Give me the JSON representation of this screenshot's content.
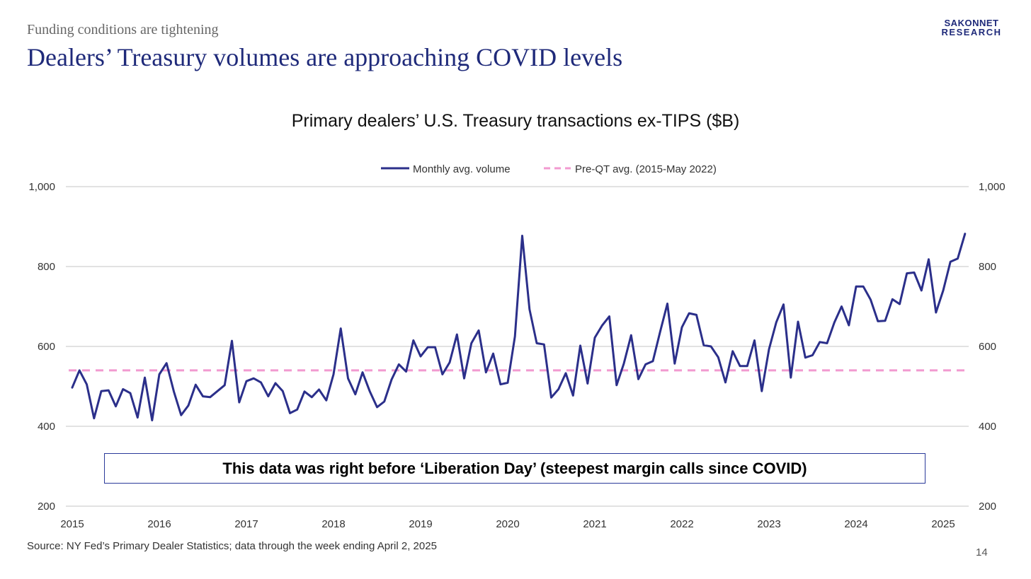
{
  "slide": {
    "kicker": "Funding conditions are tightening",
    "headline": "Dealers’ Treasury volumes are approaching COVID levels",
    "brand_line1": "SAKONNET",
    "brand_line2": "RESEARCH",
    "source": "Source: NY Fed’s Primary Dealer Statistics; data through the week ending April 2, 2025",
    "page_number": "14",
    "callout": "This data was right before ‘Liberation Day’ (steepest margin calls since COVID)"
  },
  "colors": {
    "title": "#1f2a7a",
    "series_line": "#2b2f8a",
    "reference_line": "#f29ad0",
    "grid": "#d0d0d0"
  },
  "chart_data": {
    "type": "line",
    "title": "Primary dealers’ U.S. Treasury transactions ex-TIPS ($B)",
    "ylim": [
      200,
      1000
    ],
    "yticks": [
      200,
      400,
      600,
      800,
      1000
    ],
    "ytick_labels": [
      "200",
      "400",
      "600",
      "800",
      "1,000"
    ],
    "xlim": [
      2015,
      2025.5
    ],
    "xticks": [
      2015,
      2016,
      2017,
      2018,
      2019,
      2020,
      2021,
      2022,
      2023,
      2024,
      2025
    ],
    "xtick_labels": [
      "2015",
      "2016",
      "2017",
      "2018",
      "2019",
      "2020",
      "2021",
      "2022",
      "2023",
      "2024",
      "2025"
    ],
    "grid": "horizontal",
    "legend": "top-center",
    "series": [
      {
        "name": "Monthly avg. volume",
        "style": "solid",
        "start": "2015-01",
        "frequency": "monthly",
        "values": [
          497,
          540,
          505,
          420,
          488,
          490,
          450,
          493,
          483,
          422,
          522,
          415,
          530,
          558,
          487,
          428,
          452,
          504,
          475,
          473,
          488,
          503,
          614,
          460,
          513,
          520,
          510,
          475,
          508,
          488,
          433,
          442,
          487,
          473,
          492,
          465,
          530,
          645,
          520,
          480,
          535,
          487,
          448,
          462,
          517,
          555,
          537,
          615,
          575,
          598,
          598,
          530,
          560,
          630,
          520,
          608,
          640,
          535,
          582,
          505,
          509,
          625,
          877,
          693,
          608,
          605,
          472,
          493,
          533,
          477,
          602,
          507,
          622,
          652,
          675,
          503,
          557,
          628,
          518,
          555,
          563,
          637,
          707,
          557,
          648,
          683,
          679,
          603,
          600,
          573,
          510,
          588,
          551,
          551,
          615,
          488,
          593,
          660,
          705,
          522,
          662,
          572,
          578,
          611,
          608,
          660,
          700,
          653,
          750,
          750,
          717,
          663,
          664,
          718,
          706,
          783,
          785,
          740,
          818,
          685,
          740,
          812,
          820,
          882
        ]
      },
      {
        "name": "Pre-QT avg. (2015-May 2022)",
        "style": "dashed",
        "value": 540
      }
    ]
  }
}
